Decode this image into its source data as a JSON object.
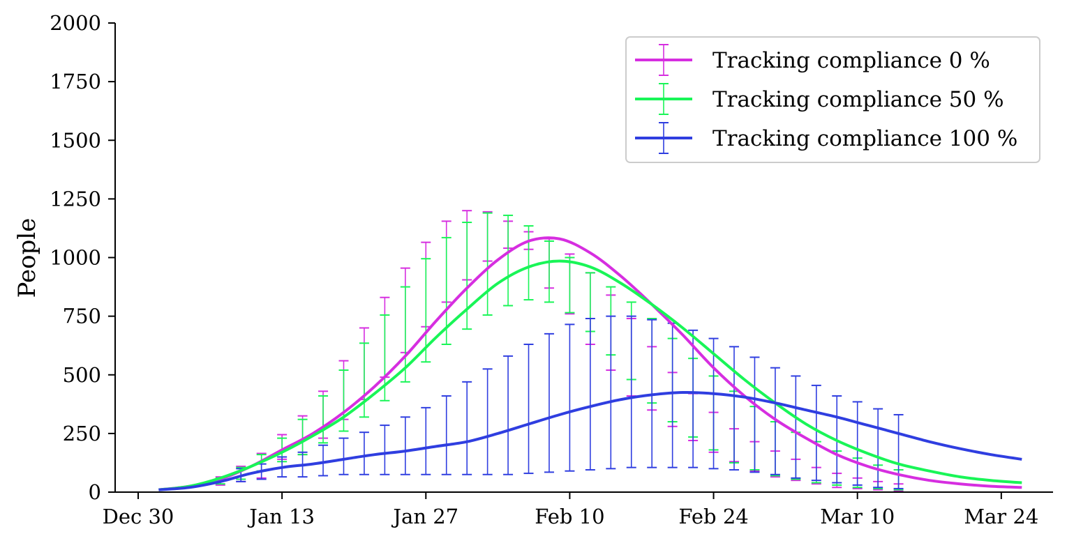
{
  "chart_data": {
    "type": "line",
    "ylabel": "People",
    "ylim": [
      0,
      2000
    ],
    "y_ticks": [
      "0",
      "250",
      "500",
      "750",
      "1000",
      "1250",
      "1500",
      "1750",
      "2000"
    ],
    "y_tick_values": [
      0,
      250,
      500,
      750,
      1000,
      1250,
      1500,
      1750,
      2000
    ],
    "x_range": [
      "2020-12-30",
      "2021-03-27"
    ],
    "x_ticks": [
      "Dec 30",
      "Jan 13",
      "Jan 27",
      "Feb 10",
      "Feb 24",
      "Mar 10",
      "Mar 24"
    ],
    "x_tick_dates": [
      "2020-12-30",
      "2021-01-13",
      "2021-01-27",
      "2021-02-10",
      "2021-02-24",
      "2021-03-10",
      "2021-03-24"
    ],
    "legend_position": "top-right",
    "grid": false,
    "error_bars": true,
    "series": [
      {
        "name": "Tracking compliance 0 %",
        "color": "#d62ee0",
        "points": [
          {
            "date": "2021-01-01",
            "value": 10
          },
          {
            "date": "2021-01-04",
            "value": 25
          },
          {
            "date": "2021-01-07",
            "value": 55
          },
          {
            "date": "2021-01-10",
            "value": 110
          },
          {
            "date": "2021-01-13",
            "value": 180
          },
          {
            "date": "2021-01-16",
            "value": 250
          },
          {
            "date": "2021-01-19",
            "value": 340
          },
          {
            "date": "2021-01-22",
            "value": 450
          },
          {
            "date": "2021-01-25",
            "value": 580
          },
          {
            "date": "2021-01-28",
            "value": 730
          },
          {
            "date": "2021-01-31",
            "value": 870
          },
          {
            "date": "2021-02-03",
            "value": 990
          },
          {
            "date": "2021-02-06",
            "value": 1070
          },
          {
            "date": "2021-02-09",
            "value": 1080
          },
          {
            "date": "2021-02-12",
            "value": 1020
          },
          {
            "date": "2021-02-15",
            "value": 920
          },
          {
            "date": "2021-02-18",
            "value": 800
          },
          {
            "date": "2021-02-21",
            "value": 670
          },
          {
            "date": "2021-02-24",
            "value": 530
          },
          {
            "date": "2021-02-27",
            "value": 410
          },
          {
            "date": "2021-03-02",
            "value": 310
          },
          {
            "date": "2021-03-05",
            "value": 230
          },
          {
            "date": "2021-03-08",
            "value": 160
          },
          {
            "date": "2021-03-11",
            "value": 110
          },
          {
            "date": "2021-03-14",
            "value": 75
          },
          {
            "date": "2021-03-17",
            "value": 50
          },
          {
            "date": "2021-03-20",
            "value": 35
          },
          {
            "date": "2021-03-23",
            "value": 25
          },
          {
            "date": "2021-03-26",
            "value": 20
          }
        ],
        "error_bars": [
          {
            "date": "2021-01-07",
            "low": 30,
            "high": 65
          },
          {
            "date": "2021-01-09",
            "low": 45,
            "high": 110
          },
          {
            "date": "2021-01-11",
            "low": 60,
            "high": 165
          },
          {
            "date": "2021-01-13",
            "low": 140,
            "high": 245
          },
          {
            "date": "2021-01-15",
            "low": 160,
            "high": 325
          },
          {
            "date": "2021-01-17",
            "low": 230,
            "high": 430
          },
          {
            "date": "2021-01-19",
            "low": 310,
            "high": 560
          },
          {
            "date": "2021-01-21",
            "low": 395,
            "high": 700
          },
          {
            "date": "2021-01-23",
            "low": 490,
            "high": 830
          },
          {
            "date": "2021-01-25",
            "low": 595,
            "high": 955
          },
          {
            "date": "2021-01-27",
            "low": 705,
            "high": 1065
          },
          {
            "date": "2021-01-29",
            "low": 810,
            "high": 1155
          },
          {
            "date": "2021-01-31",
            "low": 905,
            "high": 1200
          },
          {
            "date": "2021-02-02",
            "low": 985,
            "high": 1195
          },
          {
            "date": "2021-02-04",
            "low": 1040,
            "high": 1155
          },
          {
            "date": "2021-02-06",
            "low": 1035,
            "high": 1110
          },
          {
            "date": "2021-02-08",
            "low": 870,
            "high": 1080
          },
          {
            "date": "2021-02-10",
            "low": 760,
            "high": 1015
          },
          {
            "date": "2021-02-12",
            "low": 630,
            "high": 935
          },
          {
            "date": "2021-02-14",
            "low": 520,
            "high": 840
          },
          {
            "date": "2021-02-16",
            "low": 410,
            "high": 740
          },
          {
            "date": "2021-02-18",
            "low": 350,
            "high": 620
          },
          {
            "date": "2021-02-20",
            "low": 280,
            "high": 510
          },
          {
            "date": "2021-02-22",
            "low": 220,
            "high": 420
          },
          {
            "date": "2021-02-24",
            "low": 170,
            "high": 340
          },
          {
            "date": "2021-02-26",
            "low": 130,
            "high": 270
          },
          {
            "date": "2021-02-28",
            "low": 90,
            "high": 215
          },
          {
            "date": "2021-03-02",
            "low": 65,
            "high": 175
          },
          {
            "date": "2021-03-04",
            "low": 50,
            "high": 140
          },
          {
            "date": "2021-03-06",
            "low": 35,
            "high": 105
          },
          {
            "date": "2021-03-08",
            "low": 20,
            "high": 80
          },
          {
            "date": "2021-03-10",
            "low": 15,
            "high": 60
          },
          {
            "date": "2021-03-12",
            "low": 10,
            "high": 45
          },
          {
            "date": "2021-03-14",
            "low": 5,
            "high": 35
          }
        ]
      },
      {
        "name": "Tracking compliance 50 %",
        "color": "#19f557",
        "points": [
          {
            "date": "2021-01-01",
            "value": 10
          },
          {
            "date": "2021-01-04",
            "value": 25
          },
          {
            "date": "2021-01-07",
            "value": 60
          },
          {
            "date": "2021-01-10",
            "value": 110
          },
          {
            "date": "2021-01-13",
            "value": 170
          },
          {
            "date": "2021-01-16",
            "value": 240
          },
          {
            "date": "2021-01-19",
            "value": 320
          },
          {
            "date": "2021-01-22",
            "value": 420
          },
          {
            "date": "2021-01-25",
            "value": 530
          },
          {
            "date": "2021-01-28",
            "value": 660
          },
          {
            "date": "2021-01-31",
            "value": 780
          },
          {
            "date": "2021-02-03",
            "value": 890
          },
          {
            "date": "2021-02-06",
            "value": 960
          },
          {
            "date": "2021-02-09",
            "value": 985
          },
          {
            "date": "2021-02-12",
            "value": 960
          },
          {
            "date": "2021-02-15",
            "value": 890
          },
          {
            "date": "2021-02-18",
            "value": 800
          },
          {
            "date": "2021-02-21",
            "value": 700
          },
          {
            "date": "2021-02-24",
            "value": 590
          },
          {
            "date": "2021-02-27",
            "value": 480
          },
          {
            "date": "2021-03-02",
            "value": 380
          },
          {
            "date": "2021-03-05",
            "value": 290
          },
          {
            "date": "2021-03-08",
            "value": 220
          },
          {
            "date": "2021-03-11",
            "value": 165
          },
          {
            "date": "2021-03-14",
            "value": 120
          },
          {
            "date": "2021-03-17",
            "value": 90
          },
          {
            "date": "2021-03-20",
            "value": 65
          },
          {
            "date": "2021-03-23",
            "value": 50
          },
          {
            "date": "2021-03-26",
            "value": 40
          }
        ],
        "error_bars": [
          {
            "date": "2021-01-07",
            "low": 35,
            "high": 60
          },
          {
            "date": "2021-01-09",
            "low": 55,
            "high": 105
          },
          {
            "date": "2021-01-11",
            "low": 90,
            "high": 160
          },
          {
            "date": "2021-01-13",
            "low": 130,
            "high": 230
          },
          {
            "date": "2021-01-15",
            "low": 160,
            "high": 310
          },
          {
            "date": "2021-01-17",
            "low": 210,
            "high": 410
          },
          {
            "date": "2021-01-19",
            "low": 260,
            "high": 520
          },
          {
            "date": "2021-01-21",
            "low": 320,
            "high": 635
          },
          {
            "date": "2021-01-23",
            "low": 390,
            "high": 755
          },
          {
            "date": "2021-01-25",
            "low": 470,
            "high": 875
          },
          {
            "date": "2021-01-27",
            "low": 555,
            "high": 995
          },
          {
            "date": "2021-01-29",
            "low": 630,
            "high": 1085
          },
          {
            "date": "2021-01-31",
            "low": 695,
            "high": 1150
          },
          {
            "date": "2021-02-02",
            "low": 755,
            "high": 1190
          },
          {
            "date": "2021-02-04",
            "low": 795,
            "high": 1180
          },
          {
            "date": "2021-02-06",
            "low": 820,
            "high": 1135
          },
          {
            "date": "2021-02-08",
            "low": 810,
            "high": 1070
          },
          {
            "date": "2021-02-10",
            "low": 765,
            "high": 1000
          },
          {
            "date": "2021-02-12",
            "low": 685,
            "high": 935
          },
          {
            "date": "2021-02-14",
            "low": 585,
            "high": 875
          },
          {
            "date": "2021-02-16",
            "low": 480,
            "high": 810
          },
          {
            "date": "2021-02-18",
            "low": 380,
            "high": 740
          },
          {
            "date": "2021-02-20",
            "low": 300,
            "high": 655
          },
          {
            "date": "2021-02-22",
            "low": 235,
            "high": 570
          },
          {
            "date": "2021-02-24",
            "low": 180,
            "high": 495
          },
          {
            "date": "2021-02-26",
            "low": 125,
            "high": 430
          },
          {
            "date": "2021-02-28",
            "low": 95,
            "high": 365
          },
          {
            "date": "2021-03-02",
            "low": 70,
            "high": 300
          },
          {
            "date": "2021-03-04",
            "low": 55,
            "high": 255
          },
          {
            "date": "2021-03-06",
            "low": 40,
            "high": 215
          },
          {
            "date": "2021-03-08",
            "low": 30,
            "high": 175
          },
          {
            "date": "2021-03-10",
            "low": 20,
            "high": 145
          },
          {
            "date": "2021-03-12",
            "low": 15,
            "high": 115
          },
          {
            "date": "2021-03-14",
            "low": 10,
            "high": 95
          }
        ]
      },
      {
        "name": "Tracking compliance 100 %",
        "color": "#2f3ee0",
        "points": [
          {
            "date": "2021-01-01",
            "value": 10
          },
          {
            "date": "2021-01-04",
            "value": 20
          },
          {
            "date": "2021-01-07",
            "value": 45
          },
          {
            "date": "2021-01-10",
            "value": 80
          },
          {
            "date": "2021-01-13",
            "value": 105
          },
          {
            "date": "2021-01-16",
            "value": 120
          },
          {
            "date": "2021-01-19",
            "value": 140
          },
          {
            "date": "2021-01-22",
            "value": 160
          },
          {
            "date": "2021-01-25",
            "value": 175
          },
          {
            "date": "2021-01-28",
            "value": 195
          },
          {
            "date": "2021-01-31",
            "value": 215
          },
          {
            "date": "2021-02-03",
            "value": 250
          },
          {
            "date": "2021-02-06",
            "value": 290
          },
          {
            "date": "2021-02-09",
            "value": 330
          },
          {
            "date": "2021-02-12",
            "value": 365
          },
          {
            "date": "2021-02-15",
            "value": 395
          },
          {
            "date": "2021-02-18",
            "value": 415
          },
          {
            "date": "2021-02-21",
            "value": 425
          },
          {
            "date": "2021-02-24",
            "value": 420
          },
          {
            "date": "2021-02-27",
            "value": 405
          },
          {
            "date": "2021-03-02",
            "value": 380
          },
          {
            "date": "2021-03-05",
            "value": 350
          },
          {
            "date": "2021-03-08",
            "value": 320
          },
          {
            "date": "2021-03-11",
            "value": 285
          },
          {
            "date": "2021-03-14",
            "value": 250
          },
          {
            "date": "2021-03-17",
            "value": 215
          },
          {
            "date": "2021-03-20",
            "value": 185
          },
          {
            "date": "2021-03-23",
            "value": 160
          },
          {
            "date": "2021-03-26",
            "value": 140
          }
        ],
        "error_bars": [
          {
            "date": "2021-01-09",
            "low": 45,
            "high": 100
          },
          {
            "date": "2021-01-11",
            "low": 55,
            "high": 120
          },
          {
            "date": "2021-01-13",
            "low": 65,
            "high": 150
          },
          {
            "date": "2021-01-15",
            "low": 65,
            "high": 170
          },
          {
            "date": "2021-01-17",
            "low": 70,
            "high": 200
          },
          {
            "date": "2021-01-19",
            "low": 75,
            "high": 230
          },
          {
            "date": "2021-01-21",
            "low": 75,
            "high": 255
          },
          {
            "date": "2021-01-23",
            "low": 75,
            "high": 285
          },
          {
            "date": "2021-01-25",
            "low": 75,
            "high": 320
          },
          {
            "date": "2021-01-27",
            "low": 75,
            "high": 360
          },
          {
            "date": "2021-01-29",
            "low": 75,
            "high": 410
          },
          {
            "date": "2021-01-31",
            "low": 75,
            "high": 470
          },
          {
            "date": "2021-02-02",
            "low": 75,
            "high": 525
          },
          {
            "date": "2021-02-04",
            "low": 75,
            "high": 580
          },
          {
            "date": "2021-02-06",
            "low": 80,
            "high": 630
          },
          {
            "date": "2021-02-08",
            "low": 85,
            "high": 675
          },
          {
            "date": "2021-02-10",
            "low": 90,
            "high": 715
          },
          {
            "date": "2021-02-12",
            "low": 95,
            "high": 740
          },
          {
            "date": "2021-02-14",
            "low": 100,
            "high": 750
          },
          {
            "date": "2021-02-16",
            "low": 105,
            "high": 750
          },
          {
            "date": "2021-02-18",
            "low": 105,
            "high": 735
          },
          {
            "date": "2021-02-20",
            "low": 105,
            "high": 720
          },
          {
            "date": "2021-02-22",
            "low": 105,
            "high": 690
          },
          {
            "date": "2021-02-24",
            "low": 100,
            "high": 655
          },
          {
            "date": "2021-02-26",
            "low": 95,
            "high": 620
          },
          {
            "date": "2021-02-28",
            "low": 85,
            "high": 575
          },
          {
            "date": "2021-03-02",
            "low": 75,
            "high": 530
          },
          {
            "date": "2021-03-04",
            "low": 60,
            "high": 495
          },
          {
            "date": "2021-03-06",
            "low": 50,
            "high": 455
          },
          {
            "date": "2021-03-08",
            "low": 40,
            "high": 410
          },
          {
            "date": "2021-03-10",
            "low": 30,
            "high": 385
          },
          {
            "date": "2021-03-12",
            "low": 20,
            "high": 355
          },
          {
            "date": "2021-03-14",
            "low": 15,
            "high": 330
          }
        ]
      }
    ]
  }
}
